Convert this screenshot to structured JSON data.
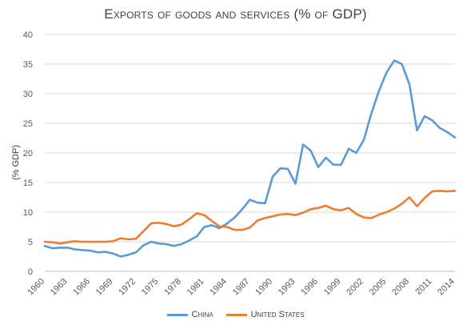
{
  "chart_data": {
    "type": "line",
    "title": "Exports of goods and services (% of GDP)",
    "ylabel": "(% GDP)",
    "xlabel": "",
    "ylim": [
      0,
      40
    ],
    "yticks": [
      0,
      5,
      10,
      15,
      20,
      25,
      30,
      35,
      40
    ],
    "xlim": [
      1960,
      2014
    ],
    "xticks": [
      1960,
      1963,
      1966,
      1969,
      1972,
      1975,
      1978,
      1981,
      1984,
      1987,
      1990,
      1993,
      1996,
      1999,
      2002,
      2005,
      2008,
      2011,
      2014
    ],
    "grid": true,
    "legend_position": "bottom",
    "x": [
      1960,
      1961,
      1962,
      1963,
      1964,
      1965,
      1966,
      1967,
      1968,
      1969,
      1970,
      1971,
      1972,
      1973,
      1974,
      1975,
      1976,
      1977,
      1978,
      1979,
      1980,
      1981,
      1982,
      1983,
      1984,
      1985,
      1986,
      1987,
      1988,
      1989,
      1990,
      1991,
      1992,
      1993,
      1994,
      1995,
      1996,
      1997,
      1998,
      1999,
      2000,
      2001,
      2002,
      2003,
      2004,
      2005,
      2006,
      2007,
      2008,
      2009,
      2010,
      2011,
      2012,
      2013,
      2014
    ],
    "series": [
      {
        "name": "China",
        "color": "#5B9BD5",
        "values": [
          4.3,
          3.9,
          4.0,
          4.0,
          3.7,
          3.6,
          3.5,
          3.2,
          3.3,
          3.0,
          2.5,
          2.8,
          3.2,
          4.4,
          5.0,
          4.7,
          4.6,
          4.3,
          4.6,
          5.2,
          5.9,
          7.5,
          7.8,
          7.3,
          8.1,
          9.1,
          10.5,
          12.1,
          11.6,
          11.5,
          16.0,
          17.4,
          17.3,
          14.8,
          21.4,
          20.4,
          17.6,
          19.2,
          18.0,
          18.0,
          20.7,
          20.0,
          22.2,
          26.7,
          30.5,
          33.6,
          35.6,
          35.0,
          31.6,
          23.8,
          26.2,
          25.5,
          24.2,
          23.5,
          22.6
        ]
      },
      {
        "name": "United States",
        "color": "#ED7D31",
        "values": [
          5.0,
          4.9,
          4.7,
          4.9,
          5.1,
          5.0,
          5.0,
          5.0,
          5.0,
          5.1,
          5.6,
          5.4,
          5.5,
          6.8,
          8.1,
          8.2,
          8.0,
          7.6,
          7.9,
          8.8,
          9.8,
          9.5,
          8.5,
          7.6,
          7.5,
          7.0,
          7.0,
          7.4,
          8.6,
          9.0,
          9.3,
          9.6,
          9.7,
          9.5,
          9.9,
          10.5,
          10.7,
          11.1,
          10.5,
          10.3,
          10.7,
          9.7,
          9.1,
          9.0,
          9.6,
          10.0,
          10.6,
          11.4,
          12.5,
          11.0,
          12.4,
          13.5,
          13.6,
          13.5,
          13.6
        ]
      }
    ]
  }
}
